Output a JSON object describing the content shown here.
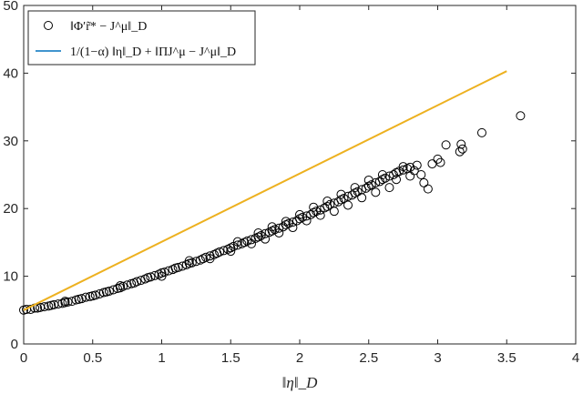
{
  "chart_data": {
    "type": "scatter",
    "xlabel": "‖η‖_D",
    "ylabel": "",
    "title": "",
    "xlim": [
      0,
      4
    ],
    "ylim": [
      0,
      50
    ],
    "xticks": [
      "0",
      "0.5",
      "1",
      "1.5",
      "2",
      "2.5",
      "3",
      "3.5",
      "4"
    ],
    "yticks": [
      "0",
      "10",
      "20",
      "30",
      "40",
      "50"
    ],
    "grid": false,
    "legend_position": "top-left",
    "series": [
      {
        "name": "‖Φ′r̃* − J^μ‖_D",
        "kind": "markers",
        "marker": "circle-open",
        "color": "#000000",
        "points": [
          [
            0,
            5.0
          ],
          [
            0.02,
            5.1
          ],
          [
            0.05,
            5.1
          ],
          [
            0.08,
            5.3
          ],
          [
            0.1,
            5.3
          ],
          [
            0.12,
            5.4
          ],
          [
            0.15,
            5.5
          ],
          [
            0.18,
            5.6
          ],
          [
            0.2,
            5.7
          ],
          [
            0.22,
            5.8
          ],
          [
            0.25,
            5.9
          ],
          [
            0.28,
            6.0
          ],
          [
            0.3,
            6.1
          ],
          [
            0.32,
            6.2
          ],
          [
            0.35,
            6.3
          ],
          [
            0.38,
            6.5
          ],
          [
            0.4,
            6.6
          ],
          [
            0.42,
            6.7
          ],
          [
            0.45,
            6.9
          ],
          [
            0.48,
            7.0
          ],
          [
            0.5,
            7.1
          ],
          [
            0.52,
            7.2
          ],
          [
            0.55,
            7.4
          ],
          [
            0.58,
            7.6
          ],
          [
            0.6,
            7.7
          ],
          [
            0.62,
            7.8
          ],
          [
            0.65,
            8.0
          ],
          [
            0.68,
            8.2
          ],
          [
            0.7,
            8.3
          ],
          [
            0.72,
            8.5
          ],
          [
            0.75,
            8.7
          ],
          [
            0.78,
            8.9
          ],
          [
            0.8,
            9.0
          ],
          [
            0.82,
            9.2
          ],
          [
            0.85,
            9.4
          ],
          [
            0.88,
            9.6
          ],
          [
            0.9,
            9.8
          ],
          [
            0.92,
            9.9
          ],
          [
            0.95,
            10.1
          ],
          [
            0.98,
            10.3
          ],
          [
            1.0,
            10.5
          ],
          [
            1.02,
            10.6
          ],
          [
            1.05,
            10.8
          ],
          [
            1.08,
            11.0
          ],
          [
            1.1,
            11.2
          ],
          [
            1.12,
            11.3
          ],
          [
            1.15,
            11.5
          ],
          [
            1.18,
            11.7
          ],
          [
            1.2,
            11.9
          ],
          [
            1.22,
            12.0
          ],
          [
            1.25,
            12.2
          ],
          [
            1.28,
            12.4
          ],
          [
            1.3,
            12.6
          ],
          [
            1.32,
            12.8
          ],
          [
            1.35,
            13.0
          ],
          [
            1.38,
            13.2
          ],
          [
            1.4,
            13.4
          ],
          [
            1.42,
            13.6
          ],
          [
            1.45,
            13.8
          ],
          [
            1.48,
            14.0
          ],
          [
            1.5,
            14.2
          ],
          [
            1.52,
            14.4
          ],
          [
            1.55,
            14.6
          ],
          [
            1.58,
            14.8
          ],
          [
            1.6,
            15.0
          ],
          [
            1.62,
            15.2
          ],
          [
            1.65,
            15.4
          ],
          [
            1.68,
            15.6
          ],
          [
            1.7,
            15.8
          ],
          [
            1.72,
            16.0
          ],
          [
            1.75,
            16.3
          ],
          [
            1.78,
            16.5
          ],
          [
            1.8,
            16.7
          ],
          [
            1.82,
            16.9
          ],
          [
            1.85,
            17.1
          ],
          [
            1.88,
            17.3
          ],
          [
            1.9,
            17.6
          ],
          [
            1.92,
            17.8
          ],
          [
            1.95,
            18.0
          ],
          [
            1.98,
            18.2
          ],
          [
            2.0,
            18.5
          ],
          [
            2.02,
            18.7
          ],
          [
            2.05,
            18.9
          ],
          [
            2.08,
            19.1
          ],
          [
            2.1,
            19.4
          ],
          [
            2.12,
            19.6
          ],
          [
            2.15,
            19.8
          ],
          [
            2.18,
            20.1
          ],
          [
            2.2,
            20.3
          ],
          [
            2.22,
            20.6
          ],
          [
            2.25,
            20.8
          ],
          [
            2.28,
            21.0
          ],
          [
            2.3,
            21.3
          ],
          [
            2.32,
            21.5
          ],
          [
            2.35,
            21.8
          ],
          [
            2.38,
            22.0
          ],
          [
            2.4,
            22.3
          ],
          [
            2.42,
            22.5
          ],
          [
            2.45,
            22.8
          ],
          [
            2.48,
            23.0
          ],
          [
            2.5,
            23.3
          ],
          [
            2.52,
            23.5
          ],
          [
            2.55,
            23.8
          ],
          [
            2.58,
            24.0
          ],
          [
            2.6,
            24.3
          ],
          [
            2.62,
            24.5
          ],
          [
            2.65,
            24.8
          ],
          [
            2.68,
            25.0
          ],
          [
            2.7,
            25.3
          ],
          [
            2.72,
            25.5
          ],
          [
            2.75,
            25.7
          ],
          [
            2.78,
            25.9
          ],
          [
            2.8,
            26.1
          ],
          [
            2.85,
            26.4
          ],
          [
            0.3,
            6.3
          ],
          [
            0.7,
            8.6
          ],
          [
            1.0,
            10.0
          ],
          [
            1.2,
            12.3
          ],
          [
            1.35,
            12.6
          ],
          [
            1.5,
            13.7
          ],
          [
            1.55,
            15.1
          ],
          [
            1.65,
            14.8
          ],
          [
            1.7,
            16.4
          ],
          [
            1.75,
            15.5
          ],
          [
            1.8,
            17.3
          ],
          [
            1.85,
            16.4
          ],
          [
            1.9,
            18.1
          ],
          [
            1.95,
            17.2
          ],
          [
            2.0,
            19.1
          ],
          [
            2.05,
            18.2
          ],
          [
            2.1,
            20.2
          ],
          [
            2.15,
            19.0
          ],
          [
            2.2,
            21.1
          ],
          [
            2.25,
            19.6
          ],
          [
            2.3,
            22.1
          ],
          [
            2.35,
            20.5
          ],
          [
            2.4,
            23.1
          ],
          [
            2.45,
            21.6
          ],
          [
            2.5,
            24.2
          ],
          [
            2.55,
            22.4
          ],
          [
            2.6,
            25.0
          ],
          [
            2.65,
            23.1
          ],
          [
            2.7,
            24.3
          ],
          [
            2.75,
            26.2
          ],
          [
            2.8,
            24.8
          ],
          [
            2.83,
            25.6
          ],
          [
            2.88,
            25.0
          ],
          [
            2.9,
            23.8
          ],
          [
            2.93,
            22.9
          ],
          [
            2.96,
            26.6
          ],
          [
            3.0,
            27.3
          ],
          [
            3.02,
            26.8
          ],
          [
            3.06,
            29.4
          ],
          [
            3.16,
            28.4
          ],
          [
            3.17,
            29.5
          ],
          [
            3.18,
            28.8
          ],
          [
            3.32,
            31.2
          ],
          [
            3.6,
            33.7
          ]
        ]
      },
      {
        "name": "1/(1−α) ‖η‖_D + ‖ΠJ^μ − J^μ‖_D",
        "kind": "line",
        "color": "#EDB120",
        "points": [
          [
            0,
            5.0
          ],
          [
            3.5,
            40.3
          ]
        ]
      }
    ]
  }
}
